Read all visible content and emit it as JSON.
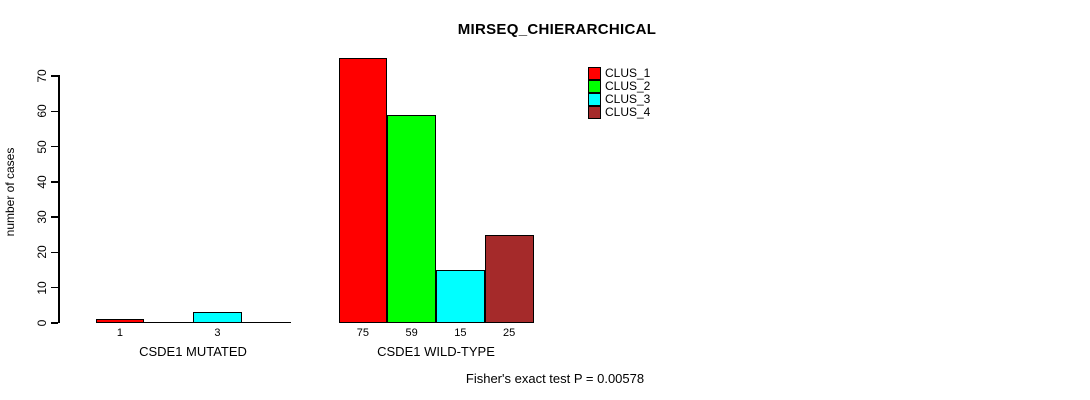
{
  "chart_data": {
    "type": "bar",
    "title": "MIRSEQ_CHIERARCHICAL",
    "ylabel": "number of cases",
    "xlabel": "",
    "ylim": [
      0,
      75
    ],
    "yticks": [
      0,
      10,
      20,
      30,
      40,
      50,
      60,
      70
    ],
    "grid": false,
    "legend_position": "top-right",
    "series": [
      {
        "name": "CLUS_1",
        "color": "#FF0000"
      },
      {
        "name": "CLUS_2",
        "color": "#00FF00"
      },
      {
        "name": "CLUS_3",
        "color": "#00FFFF"
      },
      {
        "name": "CLUS_4",
        "color": "#A52A2A"
      }
    ],
    "groups": [
      {
        "label": "CSDE1 MUTATED",
        "values": [
          1,
          0,
          3,
          0
        ],
        "value_labels": [
          "1",
          "",
          "3",
          ""
        ]
      },
      {
        "label": "CSDE1 WILD-TYPE",
        "values": [
          75,
          59,
          15,
          25
        ],
        "value_labels": [
          "75",
          "59",
          "15",
          "25"
        ]
      }
    ],
    "annotation": "Fisher's exact test P = 0.00578"
  }
}
